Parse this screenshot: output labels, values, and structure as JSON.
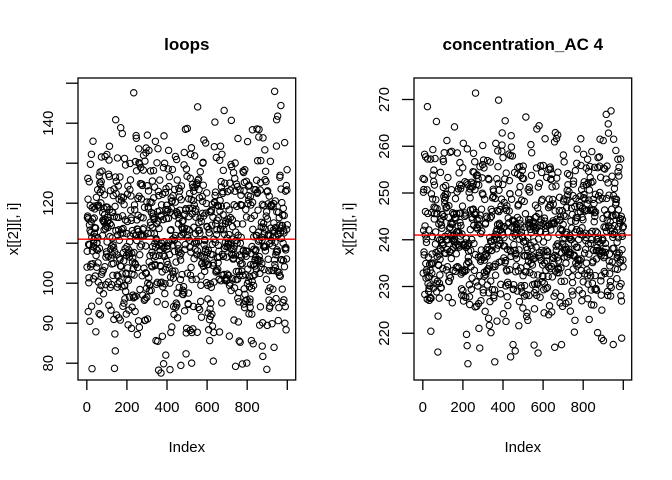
{
  "figure": {
    "background": "#ffffff",
    "foreground": "#000000",
    "accent_red": "#ff0000"
  },
  "chart_data": [
    {
      "type": "scatter",
      "title": "loops",
      "xlabel": "Index",
      "ylabel": "x[[2]][, i]",
      "xlim": [
        -44,
        1042
      ],
      "ylim": [
        75.8,
        151.3
      ],
      "grid": false,
      "legend": "none",
      "x_ticks": [
        {
          "v": 0,
          "label": "0"
        },
        {
          "v": 200,
          "label": "200"
        },
        {
          "v": 400,
          "label": "400"
        },
        {
          "v": 600,
          "label": "600"
        },
        {
          "v": 800,
          "label": "800"
        },
        {
          "v": 1000,
          "label": ""
        }
      ],
      "y_ticks": [
        {
          "v": 80,
          "label": "80"
        },
        {
          "v": 90,
          "label": "90"
        },
        {
          "v": 100,
          "label": "100"
        },
        {
          "v": 110,
          "label": ""
        },
        {
          "v": 120,
          "label": "120"
        },
        {
          "v": 130,
          "label": ""
        },
        {
          "v": 140,
          "label": "140"
        },
        {
          "v": 150,
          "label": ""
        }
      ],
      "mean_line": {
        "value": 111.0,
        "color": "#ff0000"
      },
      "marker": {
        "shape": "open-circle",
        "color": "#000000",
        "radius_px": 3.2
      },
      "points_model": {
        "n": 1000,
        "x_from": 1,
        "x_to": 1000,
        "distribution": "normal",
        "mean": 110.8,
        "sd": 12.0,
        "min": 77.5,
        "max": 148.5,
        "seed": 20
      }
    },
    {
      "type": "scatter",
      "title": "concentration_AC 4",
      "xlabel": "Index",
      "ylabel": "x[[2]][, i]",
      "xlim": [
        -44,
        1042
      ],
      "ylim": [
        210.0,
        274.6
      ],
      "grid": false,
      "legend": "none",
      "x_ticks": [
        {
          "v": 0,
          "label": "0"
        },
        {
          "v": 200,
          "label": "200"
        },
        {
          "v": 400,
          "label": "400"
        },
        {
          "v": 600,
          "label": "600"
        },
        {
          "v": 800,
          "label": "800"
        },
        {
          "v": 1000,
          "label": ""
        }
      ],
      "y_ticks": [
        {
          "v": 220,
          "label": "220"
        },
        {
          "v": 230,
          "label": "230"
        },
        {
          "v": 240,
          "label": "240"
        },
        {
          "v": 250,
          "label": "250"
        },
        {
          "v": 260,
          "label": "260"
        },
        {
          "v": 270,
          "label": "270"
        }
      ],
      "mean_line": {
        "value": 241.0,
        "color": "#ff0000"
      },
      "marker": {
        "shape": "open-circle",
        "color": "#000000",
        "radius_px": 3.2
      },
      "points_model": {
        "n": 1000,
        "x_from": 1,
        "x_to": 1000,
        "distribution": "normal",
        "mean": 241.0,
        "sd": 9.6,
        "min": 213.0,
        "max": 272.3,
        "seed": 77
      }
    }
  ]
}
